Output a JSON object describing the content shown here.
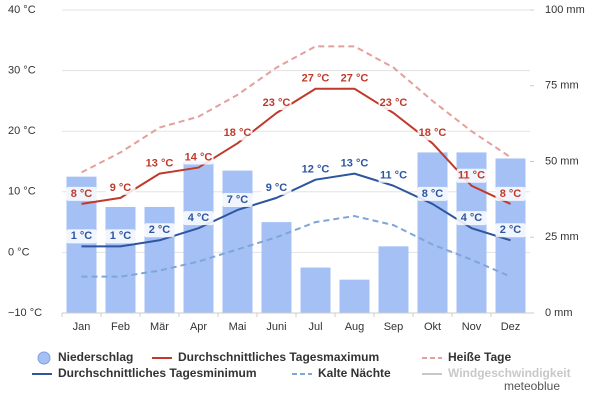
{
  "chart_data": {
    "type": "climate",
    "categories": [
      "Jan",
      "Feb",
      "Mär",
      "Apr",
      "Mai",
      "Juni",
      "Jul",
      "Aug",
      "Sep",
      "Okt",
      "Nov",
      "Dez"
    ],
    "ylim": [
      -10,
      40
    ],
    "yticks": [
      {
        "value": -10,
        "label": "−10 °C"
      },
      {
        "value": 0,
        "label": "0 °C"
      },
      {
        "value": 10,
        "label": "10 °C"
      },
      {
        "value": 20,
        "label": "20 °C"
      },
      {
        "value": 30,
        "label": "30 °C"
      },
      {
        "value": 40,
        "label": "40 °C"
      }
    ],
    "y2lim": [
      0,
      100
    ],
    "y2ticks": [
      {
        "value": 0,
        "label": "0 mm"
      },
      {
        "value": 25,
        "label": "25 mm"
      },
      {
        "value": 50,
        "label": "50 mm"
      },
      {
        "value": 75,
        "label": "75 mm"
      },
      {
        "value": 100,
        "label": "100 mm"
      }
    ],
    "grid": true,
    "series": [
      {
        "name": "Niederschlag",
        "type": "bar",
        "axis": "y2",
        "color": "#a4c0f4",
        "values": [
          45,
          35,
          35,
          50,
          47,
          30,
          15,
          11,
          22,
          53,
          53,
          51
        ]
      },
      {
        "name": "Durchschnittliches Tagesmaximum",
        "type": "line",
        "color": "#c0392b",
        "values": [
          8,
          9,
          13,
          14,
          18,
          23,
          27,
          27,
          23,
          18,
          11,
          8
        ],
        "value_labels": [
          "8 °C",
          "9 °C",
          "13 °C",
          "14 °C",
          "18 °C",
          "23 °C",
          "27 °C",
          "27 °C",
          "23 °C",
          "18 °C",
          "11 °C",
          "8 °C"
        ]
      },
      {
        "name": "Heiße Tage",
        "type": "line",
        "dashed": true,
        "color": "#e4a09c",
        "values": [
          13.2,
          16.5,
          20.6,
          22.4,
          26,
          30.5,
          34,
          34,
          30.5,
          25,
          20,
          15.7
        ]
      },
      {
        "name": "Durchschnittliches Tagesminimum",
        "type": "line",
        "color": "#2d55a0",
        "values": [
          1,
          1,
          2,
          4,
          7,
          9,
          12,
          13,
          11,
          8,
          4,
          2
        ],
        "value_labels": [
          "1 °C",
          "1 °C",
          "2 °C",
          "4 °C",
          "7 °C",
          "9 °C",
          "12 °C",
          "13 °C",
          "11 °C",
          "8 °C",
          "4 °C",
          "2 °C"
        ]
      },
      {
        "name": "Kalte Nächte",
        "type": "line",
        "dashed": true,
        "color": "#7fa6d8",
        "values": [
          -4,
          -4,
          -3,
          -1.5,
          0.5,
          2.5,
          5,
          6,
          4.5,
          1.3,
          -1.2,
          -4
        ]
      }
    ],
    "inactive_legend": [
      {
        "name": "Windgeschwindigkeit",
        "color": "#c8c8c8"
      }
    ],
    "credit": "meteoblue"
  }
}
